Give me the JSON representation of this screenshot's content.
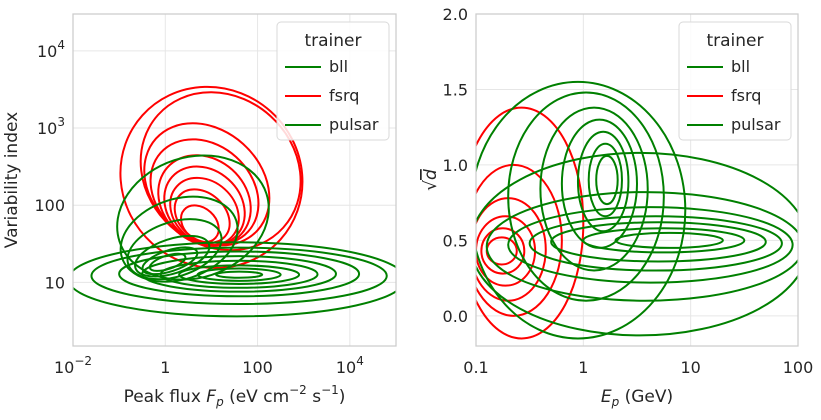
{
  "chart_data": [
    {
      "type": "contour",
      "xlabel": "Peak flux F_p (eV cm^-2 s^-1)",
      "ylabel": "Variability index",
      "x_scale": "log",
      "y_scale": "log",
      "xlim": [
        0.01,
        100000
      ],
      "ylim": [
        1.5,
        30000
      ],
      "x_ticks": [
        {
          "value": 0.01,
          "label": "10",
          "exp": "−2"
        },
        {
          "value": 1,
          "label": "1",
          "exp": ""
        },
        {
          "value": 100,
          "label": "100",
          "exp": ""
        },
        {
          "value": 10000,
          "label": "10",
          "exp": "4"
        }
      ],
      "y_ticks": [
        {
          "value": 10,
          "label": "10",
          "exp": ""
        },
        {
          "value": 100,
          "label": "100",
          "exp": ""
        },
        {
          "value": 1000,
          "label": "10",
          "exp": "3"
        },
        {
          "value": 10000,
          "label": "10",
          "exp": "4"
        }
      ],
      "grid": true,
      "legend": {
        "title": "trainer",
        "position": "top-right",
        "items": [
          {
            "name": "bll",
            "color": "#008000"
          },
          {
            "name": "fsrq",
            "color": "#ff0000"
          },
          {
            "name": "pulsar",
            "color": "#008000"
          }
        ]
      },
      "series": [
        {
          "name": "fsrq",
          "color": "#ff0000",
          "center": [
            5,
            80
          ],
          "levels": [
            {
              "log_x": [
                -2.1,
                4.1
              ],
              "log_y": [
                0.42,
                4.3
              ]
            },
            {
              "log_x": [
                -1.4,
                3.8
              ],
              "log_y": [
                0.68,
                4.2
              ]
            },
            {
              "log_x": [
                -1.0,
                2.8
              ],
              "log_y": [
                0.84,
                3.7
              ]
            },
            {
              "log_x": [
                -0.8,
                2.5
              ],
              "log_y": [
                0.94,
                3.4
              ]
            },
            {
              "log_x": [
                -0.6,
                2.3
              ],
              "log_y": [
                1.02,
                3.1
              ]
            },
            {
              "log_x": [
                -0.4,
                2.1
              ],
              "log_y": [
                1.08,
                2.9
              ]
            },
            {
              "log_x": [
                -0.2,
                1.9
              ],
              "log_y": [
                1.14,
                2.7
              ]
            },
            {
              "log_x": [
                0.0,
                1.6
              ],
              "log_y": [
                1.22,
                2.5
              ]
            },
            {
              "log_x": [
                0.2,
                1.3
              ],
              "log_y": [
                1.32,
                2.2
              ]
            }
          ]
        },
        {
          "name": "bll",
          "color": "#008000",
          "center": [
            2,
            25
          ],
          "levels": [
            {
              "log_x": [
                -2.1,
                3.3
              ],
              "log_y": [
                0.58,
                3.1
              ]
            },
            {
              "log_x": [
                -1.8,
                2.4
              ],
              "log_y": [
                0.72,
                2.4
              ]
            },
            {
              "log_x": [
                -1.5,
                1.9
              ],
              "log_y": [
                0.86,
                2.0
              ]
            },
            {
              "log_x": [
                -1.2,
                1.5
              ],
              "log_y": [
                0.98,
                1.7
              ]
            },
            {
              "log_x": [
                -0.9,
                1.1
              ],
              "log_y": [
                1.06,
                1.5
              ]
            },
            {
              "log_x": [
                -0.6,
                0.7
              ],
              "log_y": [
                1.12,
                1.4
              ]
            }
          ]
        },
        {
          "name": "pulsar",
          "color": "#008000",
          "center": [
            30,
            12
          ],
          "levels": [
            {
              "log_x": [
                -2.1,
                5.2
              ],
              "log_y": [
                0.56,
                1.52
              ]
            },
            {
              "log_x": [
                -1.6,
                4.8
              ],
              "log_y": [
                0.72,
                1.45
              ]
            },
            {
              "log_x": [
                -1.0,
                4.2
              ],
              "log_y": [
                0.82,
                1.4
              ]
            },
            {
              "log_x": [
                -0.5,
                3.7
              ],
              "log_y": [
                0.88,
                1.34
              ]
            },
            {
              "log_x": [
                -0.1,
                3.3
              ],
              "log_y": [
                0.93,
                1.28
              ]
            },
            {
              "log_x": [
                0.3,
                2.9
              ],
              "log_y": [
                0.98,
                1.22
              ]
            },
            {
              "log_x": [
                0.7,
                2.5
              ],
              "log_y": [
                1.02,
                1.18
              ]
            },
            {
              "log_x": [
                1.1,
                2.1
              ],
              "log_y": [
                1.06,
                1.14
              ]
            }
          ]
        }
      ]
    },
    {
      "type": "contour",
      "xlabel": "E_p (GeV)",
      "ylabel": "√d",
      "x_scale": "log",
      "y_scale": "linear",
      "xlim": [
        0.1,
        100
      ],
      "ylim": [
        -0.2,
        2.0
      ],
      "x_ticks": [
        {
          "value": 0.1,
          "label": "0.1",
          "exp": ""
        },
        {
          "value": 1,
          "label": "1",
          "exp": ""
        },
        {
          "value": 10,
          "label": "10",
          "exp": ""
        },
        {
          "value": 100,
          "label": "100",
          "exp": ""
        }
      ],
      "y_ticks": [
        {
          "value": 0.0,
          "label": "0.0",
          "exp": ""
        },
        {
          "value": 0.5,
          "label": "0.5",
          "exp": ""
        },
        {
          "value": 1.0,
          "label": "1.0",
          "exp": ""
        },
        {
          "value": 1.5,
          "label": "1.5",
          "exp": ""
        },
        {
          "value": 2.0,
          "label": "2.0",
          "exp": ""
        }
      ],
      "grid": true,
      "legend": {
        "title": "trainer",
        "position": "top-right",
        "items": [
          {
            "name": "bll",
            "color": "#008000"
          },
          {
            "name": "fsrq",
            "color": "#ff0000"
          },
          {
            "name": "pulsar",
            "color": "#008000"
          }
        ]
      },
      "series": [
        {
          "name": "fsrq",
          "color": "#ff0000",
          "center": [
            0.2,
            0.45
          ],
          "levels": [
            {
              "log_x": [
                -1.15,
                0.0
              ],
              "y": [
                -0.15,
                1.38
              ]
            },
            {
              "log_x": [
                -1.1,
                -0.2
              ],
              "y": [
                0.0,
                1.0
              ]
            },
            {
              "log_x": [
                -1.05,
                -0.35
              ],
              "y": [
                0.1,
                0.78
              ]
            },
            {
              "log_x": [
                -1.0,
                -0.45
              ],
              "y": [
                0.2,
                0.66
              ]
            },
            {
              "log_x": [
                -0.95,
                -0.55
              ],
              "y": [
                0.28,
                0.58
              ]
            },
            {
              "log_x": [
                -0.9,
                -0.62
              ],
              "y": [
                0.34,
                0.52
              ]
            }
          ]
        },
        {
          "name": "bll",
          "color": "#008000",
          "center": [
            1.5,
            0.9
          ],
          "levels": [
            {
              "log_x": [
                -1.05,
                0.95
              ],
              "y": [
                -0.15,
                1.55
              ]
            },
            {
              "log_x": [
                -0.7,
                0.75
              ],
              "y": [
                0.1,
                1.48
              ]
            },
            {
              "log_x": [
                -0.4,
                0.6
              ],
              "y": [
                0.3,
                1.38
              ]
            },
            {
              "log_x": [
                -0.2,
                0.5
              ],
              "y": [
                0.45,
                1.3
              ]
            },
            {
              "log_x": [
                -0.05,
                0.42
              ],
              "y": [
                0.56,
                1.22
              ]
            },
            {
              "log_x": [
                0.05,
                0.36
              ],
              "y": [
                0.66,
                1.14
              ]
            },
            {
              "log_x": [
                0.12,
                0.32
              ],
              "y": [
                0.74,
                1.06
              ]
            }
          ]
        },
        {
          "name": "pulsar",
          "color": "#008000",
          "center": [
            3,
            0.5
          ],
          "levels": [
            {
              "log_x": [
                -1.05,
                2.1
              ],
              "y": [
                -0.13,
                1.08
              ]
            },
            {
              "log_x": [
                -0.9,
                2.05
              ],
              "y": [
                0.1,
                0.82
              ]
            },
            {
              "log_x": [
                -0.7,
                1.95
              ],
              "y": [
                0.22,
                0.72
              ]
            },
            {
              "log_x": [
                -0.5,
                1.85
              ],
              "y": [
                0.3,
                0.66
              ]
            },
            {
              "log_x": [
                -0.3,
                1.7
              ],
              "y": [
                0.36,
                0.62
              ]
            },
            {
              "log_x": [
                0.0,
                1.5
              ],
              "y": [
                0.42,
                0.58
              ]
            },
            {
              "log_x": [
                0.3,
                1.3
              ],
              "y": [
                0.45,
                0.55
              ]
            }
          ]
        }
      ]
    }
  ]
}
